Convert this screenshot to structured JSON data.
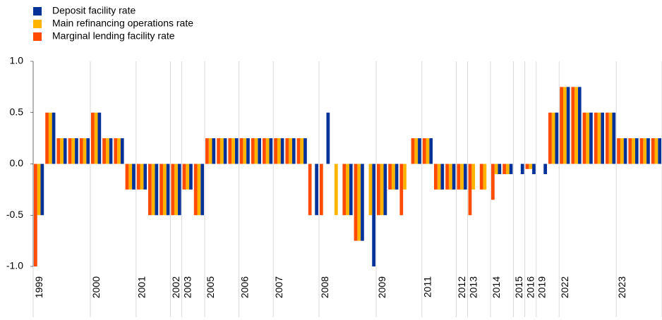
{
  "chart_data": {
    "type": "bar",
    "categories": [
      "1999",
      null,
      null,
      null,
      null,
      "2000",
      null,
      null,
      null,
      "2001",
      null,
      null,
      "2002",
      "2003",
      null,
      "2005",
      null,
      null,
      "2006",
      null,
      null,
      "2007",
      null,
      null,
      null,
      "2008",
      null,
      null,
      null,
      null,
      "2009",
      null,
      null,
      null,
      "2011",
      null,
      null,
      "2012",
      "2013",
      null,
      "2014",
      null,
      "2015",
      "2016",
      "2019",
      null,
      "2022",
      null,
      null,
      null,
      null,
      "2023",
      null,
      null,
      null
    ],
    "series": [
      {
        "name": "Deposit facility rate",
        "color": "#003299",
        "values": [
          -0.5,
          0.5,
          0.25,
          0.25,
          0.25,
          0.5,
          0.25,
          0.25,
          -0.25,
          -0.25,
          -0.5,
          -0.5,
          -0.5,
          -0.25,
          -0.5,
          0.25,
          0.25,
          0.25,
          0.25,
          0.25,
          0.25,
          0.25,
          0.25,
          0.25,
          -0.5,
          0.5,
          0,
          -0.5,
          -0.75,
          -1,
          -0.5,
          -0.25,
          0,
          0.25,
          0.25,
          -0.25,
          -0.25,
          -0.25,
          0,
          0,
          -0.1,
          -0.1,
          -0.1,
          -0.1,
          -0.1,
          0.5,
          0.75,
          0.75,
          0.5,
          0.5,
          0.5,
          0.25,
          0.25,
          0.25,
          0.25
        ]
      },
      {
        "name": "Main refinancing operations rate",
        "color": "#ffb400",
        "values": [
          -0.5,
          0.5,
          0.25,
          0.25,
          0.25,
          0.5,
          0.25,
          0.25,
          -0.25,
          -0.25,
          -0.5,
          -0.5,
          -0.5,
          -0.25,
          -0.5,
          0.25,
          0.25,
          0.25,
          0.25,
          0.25,
          0.25,
          0.25,
          0.25,
          0.25,
          0,
          0,
          -0.5,
          -0.5,
          -0.75,
          -0.5,
          -0.5,
          -0.25,
          -0.25,
          0.25,
          0.25,
          -0.25,
          -0.25,
          -0.25,
          -0.25,
          -0.25,
          -0.1,
          -0.1,
          0,
          -0.05,
          0,
          0.5,
          0.75,
          0.75,
          0.5,
          0.5,
          0.5,
          0.25,
          0.25,
          0.25,
          0.25
        ]
      },
      {
        "name": "Marginal lending facility rate",
        "color": "#ff4b00",
        "values": [
          -1,
          0.5,
          0.25,
          0.25,
          0.25,
          0.5,
          0.25,
          0.25,
          -0.25,
          -0.25,
          -0.5,
          -0.5,
          -0.5,
          -0.25,
          -0.5,
          0.25,
          0.25,
          0.25,
          0.25,
          0.25,
          0.25,
          0.25,
          0.25,
          0.25,
          -0.5,
          -0.5,
          0,
          -0.5,
          -0.75,
          0,
          -0.5,
          -0.25,
          -0.5,
          0.25,
          0.25,
          -0.25,
          -0.25,
          -0.25,
          -0.5,
          -0.25,
          -0.35,
          -0.1,
          0,
          -0.05,
          0,
          0.5,
          0.75,
          0.75,
          0.5,
          0.5,
          0.5,
          0.25,
          0.25,
          0.25,
          0.25
        ]
      }
    ],
    "ylim": [
      -1,
      1
    ],
    "yticks": [
      {
        "value": 1,
        "label": "1.0"
      },
      0.5,
      {
        "value": 0,
        "label": "0.0"
      },
      -0.5,
      {
        "value": -1,
        "label": "-1.0"
      }
    ],
    "legend": "top-left"
  }
}
